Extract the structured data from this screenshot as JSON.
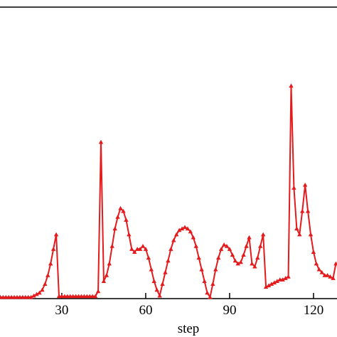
{
  "chart_data": {
    "type": "line",
    "x_label": "step",
    "x": [
      8,
      9,
      10,
      11,
      12,
      13,
      14,
      15,
      16,
      17,
      18,
      19,
      20,
      21,
      22,
      23,
      24,
      25,
      26,
      27,
      28,
      29,
      30,
      31,
      32,
      33,
      34,
      35,
      36,
      37,
      38,
      39,
      40,
      41,
      42,
      43,
      44,
      45,
      46,
      47,
      48,
      49,
      50,
      51,
      52,
      53,
      54,
      55,
      56,
      57,
      58,
      59,
      60,
      61,
      62,
      63,
      64,
      65,
      66,
      67,
      68,
      69,
      70,
      71,
      72,
      73,
      74,
      75,
      76,
      77,
      78,
      79,
      80,
      81,
      82,
      83,
      84,
      85,
      86,
      87,
      88,
      89,
      90,
      91,
      92,
      93,
      94,
      95,
      96,
      97,
      98,
      99,
      100,
      101,
      102,
      103,
      104,
      105,
      106,
      107,
      108,
      109,
      110,
      111,
      112,
      113,
      114,
      115,
      116,
      117,
      118,
      119,
      120,
      121,
      122,
      123,
      124,
      125,
      126,
      127,
      128
    ],
    "series": [
      {
        "color": "#e41a1c",
        "values": [
          0.5,
          0.5,
          0.5,
          0.5,
          0.5,
          0.5,
          0.5,
          0.5,
          0.5,
          0.5,
          0.5,
          0.5,
          1,
          1.5,
          2,
          3,
          5,
          8,
          12,
          17,
          22,
          0.8,
          0.8,
          0.8,
          0.8,
          0.8,
          0.8,
          0.8,
          0.8,
          0.8,
          0.8,
          0.8,
          0.8,
          0.8,
          0.8,
          2.5,
          53.7,
          6,
          8,
          12,
          18,
          24,
          28,
          31,
          30,
          27,
          22,
          17,
          16,
          17,
          17,
          18,
          17,
          14,
          10,
          6,
          3,
          1,
          5,
          9,
          13,
          17,
          20,
          22,
          23.5,
          24,
          24.5,
          24,
          23,
          21,
          18,
          14,
          10,
          6,
          2,
          0.5,
          5,
          10,
          14,
          17,
          18.5,
          18,
          17,
          15,
          13,
          12,
          12.5,
          15,
          18,
          21,
          12,
          11,
          14,
          18,
          22,
          4,
          4.5,
          5,
          5.5,
          6,
          6.5,
          6.5,
          7,
          7.5,
          73,
          38,
          24,
          22,
          30,
          39,
          30,
          22,
          16,
          12,
          10,
          9,
          8,
          8,
          7.5,
          7,
          12
        ]
      }
    ],
    "xlim": [
      7.9,
      128.4
    ],
    "ylim": [
      0,
      100
    ],
    "xticks": [
      30,
      60,
      90,
      120
    ]
  }
}
